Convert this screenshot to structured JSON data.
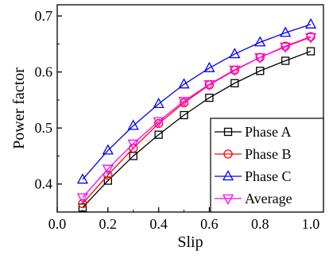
{
  "chart_data": {
    "type": "line",
    "xlabel": "Slip",
    "ylabel": "Power factor",
    "xlim": [
      0.0,
      1.05
    ],
    "ylim": [
      0.35,
      0.72
    ],
    "xticks": [
      0.0,
      0.2,
      0.4,
      0.6,
      0.8,
      1.0
    ],
    "xtick_labels": [
      "0.0",
      "0.2",
      "0.4",
      "0.6",
      "0.8",
      "1.0"
    ],
    "yticks": [
      0.4,
      0.5,
      0.6,
      0.7
    ],
    "ytick_labels": [
      "0.4",
      "0.5",
      "0.6",
      "0.7"
    ],
    "grid": false,
    "legend_position": "bottom-right",
    "x": [
      0.1,
      0.2,
      0.3,
      0.4,
      0.5,
      0.6,
      0.7,
      0.8,
      0.9,
      1.0
    ],
    "series": [
      {
        "name": "Phase A",
        "color": "#000000",
        "marker": "square",
        "values": [
          0.358,
          0.406,
          0.45,
          0.488,
          0.523,
          0.554,
          0.58,
          0.602,
          0.62,
          0.637
        ]
      },
      {
        "name": "Phase B",
        "color": "#ff0000",
        "marker": "circle",
        "values": [
          0.365,
          0.416,
          0.464,
          0.508,
          0.545,
          0.577,
          0.603,
          0.626,
          0.646,
          0.663
        ]
      },
      {
        "name": "Phase C",
        "color": "#0000ff",
        "marker": "triangle-up",
        "values": [
          0.408,
          0.46,
          0.504,
          0.543,
          0.578,
          0.607,
          0.632,
          0.653,
          0.67,
          0.685
        ]
      },
      {
        "name": "Average",
        "color": "#ff00ff",
        "marker": "triangle-down",
        "values": [
          0.376,
          0.427,
          0.472,
          0.512,
          0.548,
          0.578,
          0.604,
          0.626,
          0.645,
          0.662
        ]
      }
    ]
  }
}
